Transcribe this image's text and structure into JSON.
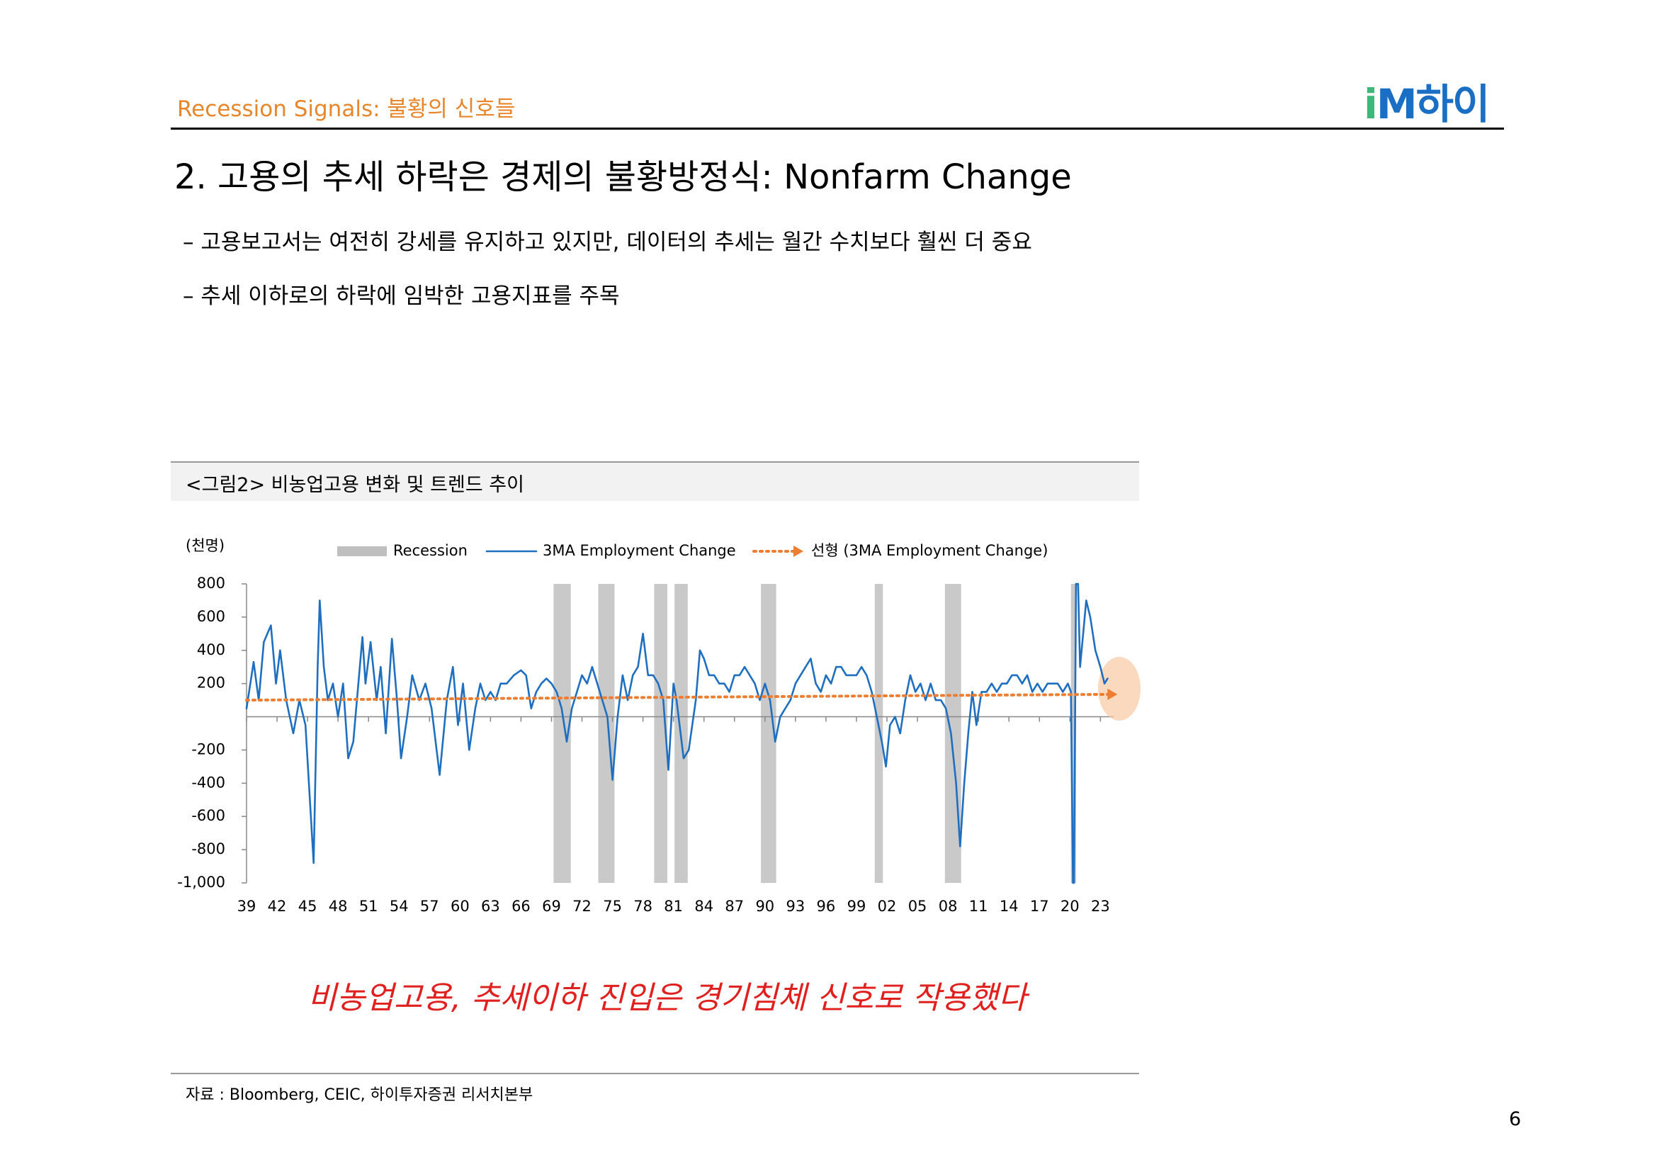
{
  "header": {
    "section": "Recession Signals: 불황의 신호들",
    "logo_mark_i": "i",
    "logo_mark_m": "M",
    "logo_text": "하이"
  },
  "heading": "2. 고용의 추세 하락은 경제의 불황방정식: Nonfarm Change",
  "bullets": [
    "–  고용보고서는 여전히 강세를 유지하고 있지만, 데이터의 추세는 월간 수치보다 훨씬 더 중요",
    "–  추세 이하로의 하락에 임박한 고용지표를 주목"
  ],
  "figure_caption": "<그림2> 비농업고용 변화 및 트렌드 추이",
  "chart_data": {
    "type": "line",
    "y_unit_label": "(천명)",
    "xlim": [
      1939,
      2024.3
    ],
    "xticks": [
      {
        "value": 1939,
        "label": "39"
      },
      {
        "value": 1942,
        "label": "42"
      },
      {
        "value": 1945,
        "label": "45"
      },
      {
        "value": 1948,
        "label": "48"
      },
      {
        "value": 1951,
        "label": "51"
      },
      {
        "value": 1954,
        "label": "54"
      },
      {
        "value": 1957,
        "label": "57"
      },
      {
        "value": 1960,
        "label": "60"
      },
      {
        "value": 1963,
        "label": "63"
      },
      {
        "value": 1966,
        "label": "66"
      },
      {
        "value": 1969,
        "label": "69"
      },
      {
        "value": 1972,
        "label": "72"
      },
      {
        "value": 1975,
        "label": "75"
      },
      {
        "value": 1978,
        "label": "78"
      },
      {
        "value": 1981,
        "label": "81"
      },
      {
        "value": 1984,
        "label": "84"
      },
      {
        "value": 1987,
        "label": "87"
      },
      {
        "value": 1990,
        "label": "90"
      },
      {
        "value": 1993,
        "label": "93"
      },
      {
        "value": 1996,
        "label": "96"
      },
      {
        "value": 1999,
        "label": "99"
      },
      {
        "value": 2002,
        "label": "02"
      },
      {
        "value": 2005,
        "label": "05"
      },
      {
        "value": 2008,
        "label": "08"
      },
      {
        "value": 2011,
        "label": "11"
      },
      {
        "value": 2014,
        "label": "14"
      },
      {
        "value": 2017,
        "label": "17"
      },
      {
        "value": 2020,
        "label": "20"
      },
      {
        "value": 2023,
        "label": "23"
      }
    ],
    "ylim": [
      -1000,
      800
    ],
    "yticks": [
      800,
      600,
      400,
      200,
      -200,
      -400,
      -600,
      -800,
      {
        "value": -1000,
        "label": "-1,000"
      }
    ],
    "recessions": {
      "name": "Recession",
      "color": "#bfbfbf",
      "ranges": [
        [
          1969.2,
          1970.9
        ],
        [
          1973.6,
          1975.2
        ],
        [
          1979.1,
          1980.4
        ],
        [
          1981.1,
          1982.4
        ],
        [
          1989.6,
          1991.1
        ],
        [
          2000.8,
          2001.6
        ],
        [
          2007.7,
          2009.3
        ],
        [
          2020.1,
          2020.6
        ]
      ]
    },
    "series": [
      {
        "name": "3MA Employment Change",
        "color": "#1f6fc0",
        "x": [
          1939.0,
          1939.7,
          1940.2,
          1940.7,
          1941.4,
          1941.9,
          1942.3,
          1942.9,
          1943.6,
          1944.2,
          1944.8,
          1945.6,
          1946.0,
          1946.2,
          1946.6,
          1947.0,
          1947.5,
          1948.0,
          1948.5,
          1949.0,
          1949.5,
          1950.4,
          1950.7,
          1951.2,
          1951.8,
          1952.2,
          1952.7,
          1953.3,
          1953.8,
          1954.2,
          1954.8,
          1955.3,
          1956.0,
          1956.6,
          1957.2,
          1958.0,
          1958.7,
          1959.3,
          1959.8,
          1960.3,
          1960.9,
          1961.5,
          1962.0,
          1962.5,
          1963.0,
          1963.5,
          1964.0,
          1964.6,
          1965.3,
          1966.0,
          1966.5,
          1967.0,
          1967.5,
          1968.0,
          1968.5,
          1969.0,
          1969.5,
          1970.0,
          1970.5,
          1971.0,
          1971.5,
          1972.0,
          1972.5,
          1973.0,
          1973.5,
          1974.0,
          1974.5,
          1975.0,
          1975.5,
          1976.0,
          1976.5,
          1977.0,
          1977.5,
          1978.0,
          1978.5,
          1979.0,
          1979.5,
          1980.0,
          1980.5,
          1981.0,
          1981.3,
          1982.0,
          1982.5,
          1983.2,
          1983.6,
          1984.0,
          1984.5,
          1985.0,
          1985.5,
          1986.0,
          1986.5,
          1987.0,
          1987.5,
          1988.0,
          1988.5,
          1989.0,
          1989.5,
          1990.0,
          1990.5,
          1991.0,
          1991.5,
          1992.0,
          1992.5,
          1993.0,
          1993.5,
          1994.0,
          1994.5,
          1995.0,
          1995.5,
          1996.0,
          1996.5,
          1997.0,
          1997.5,
          1998.0,
          1998.5,
          1999.0,
          1999.5,
          2000.0,
          2000.5,
          2001.0,
          2001.5,
          2001.9,
          2002.3,
          2002.8,
          2003.3,
          2003.8,
          2004.3,
          2004.8,
          2005.3,
          2005.8,
          2006.3,
          2006.8,
          2007.3,
          2007.8,
          2008.3,
          2008.8,
          2009.2,
          2009.6,
          2010.0,
          2010.4,
          2010.8,
          2011.3,
          2011.8,
          2012.3,
          2012.8,
          2013.3,
          2013.8,
          2014.3,
          2014.8,
          2015.3,
          2015.8,
          2016.3,
          2016.8,
          2017.3,
          2017.8,
          2018.3,
          2018.8,
          2019.3,
          2019.8,
          2020.1,
          2020.3,
          2020.4,
          2020.6,
          2020.8,
          2021.0,
          2021.3,
          2021.6,
          2022.0,
          2022.5,
          2023.0,
          2023.4,
          2023.7
        ],
        "values": [
          50,
          330,
          100,
          450,
          550,
          200,
          400,
          100,
          -100,
          100,
          -50,
          -880,
          300,
          700,
          300,
          100,
          200,
          0,
          200,
          -250,
          -150,
          480,
          200,
          450,
          100,
          300,
          -100,
          470,
          100,
          -250,
          0,
          250,
          100,
          200,
          50,
          -350,
          100,
          300,
          -50,
          200,
          -200,
          50,
          200,
          100,
          150,
          100,
          200,
          200,
          250,
          280,
          250,
          50,
          150,
          200,
          230,
          200,
          150,
          50,
          -150,
          50,
          150,
          250,
          200,
          300,
          200,
          100,
          0,
          -380,
          0,
          250,
          100,
          250,
          300,
          500,
          250,
          250,
          200,
          100,
          -320,
          200,
          100,
          -250,
          -200,
          100,
          400,
          350,
          250,
          250,
          200,
          200,
          150,
          250,
          250,
          300,
          250,
          200,
          100,
          200,
          100,
          -150,
          0,
          50,
          100,
          200,
          250,
          300,
          350,
          200,
          150,
          250,
          200,
          300,
          300,
          250,
          250,
          250,
          300,
          250,
          150,
          0,
          -150,
          -300,
          -50,
          0,
          -100,
          100,
          250,
          150,
          200,
          100,
          200,
          100,
          100,
          50,
          -100,
          -400,
          -780,
          -400,
          -100,
          150,
          -50,
          150,
          150,
          200,
          150,
          200,
          200,
          250,
          250,
          200,
          250,
          150,
          200,
          150,
          200,
          200,
          200,
          150,
          200,
          150,
          -1000,
          -1000,
          800,
          800,
          300,
          500,
          700,
          600,
          400,
          300,
          200,
          230
        ]
      },
      {
        "name": "선형 (3MA Employment Change)",
        "color": "#ed7d31",
        "style": "dotted",
        "x": [
          1939.0,
          2023.7
        ],
        "values": [
          100,
          135
        ]
      }
    ]
  },
  "highlight_note": "비농업고용, 추세이하 진입은 경기침체 신호로 작용했다",
  "source": "자료 : Bloomberg, CEIC, 하이투자증권 리서치본부",
  "page_number": "6"
}
